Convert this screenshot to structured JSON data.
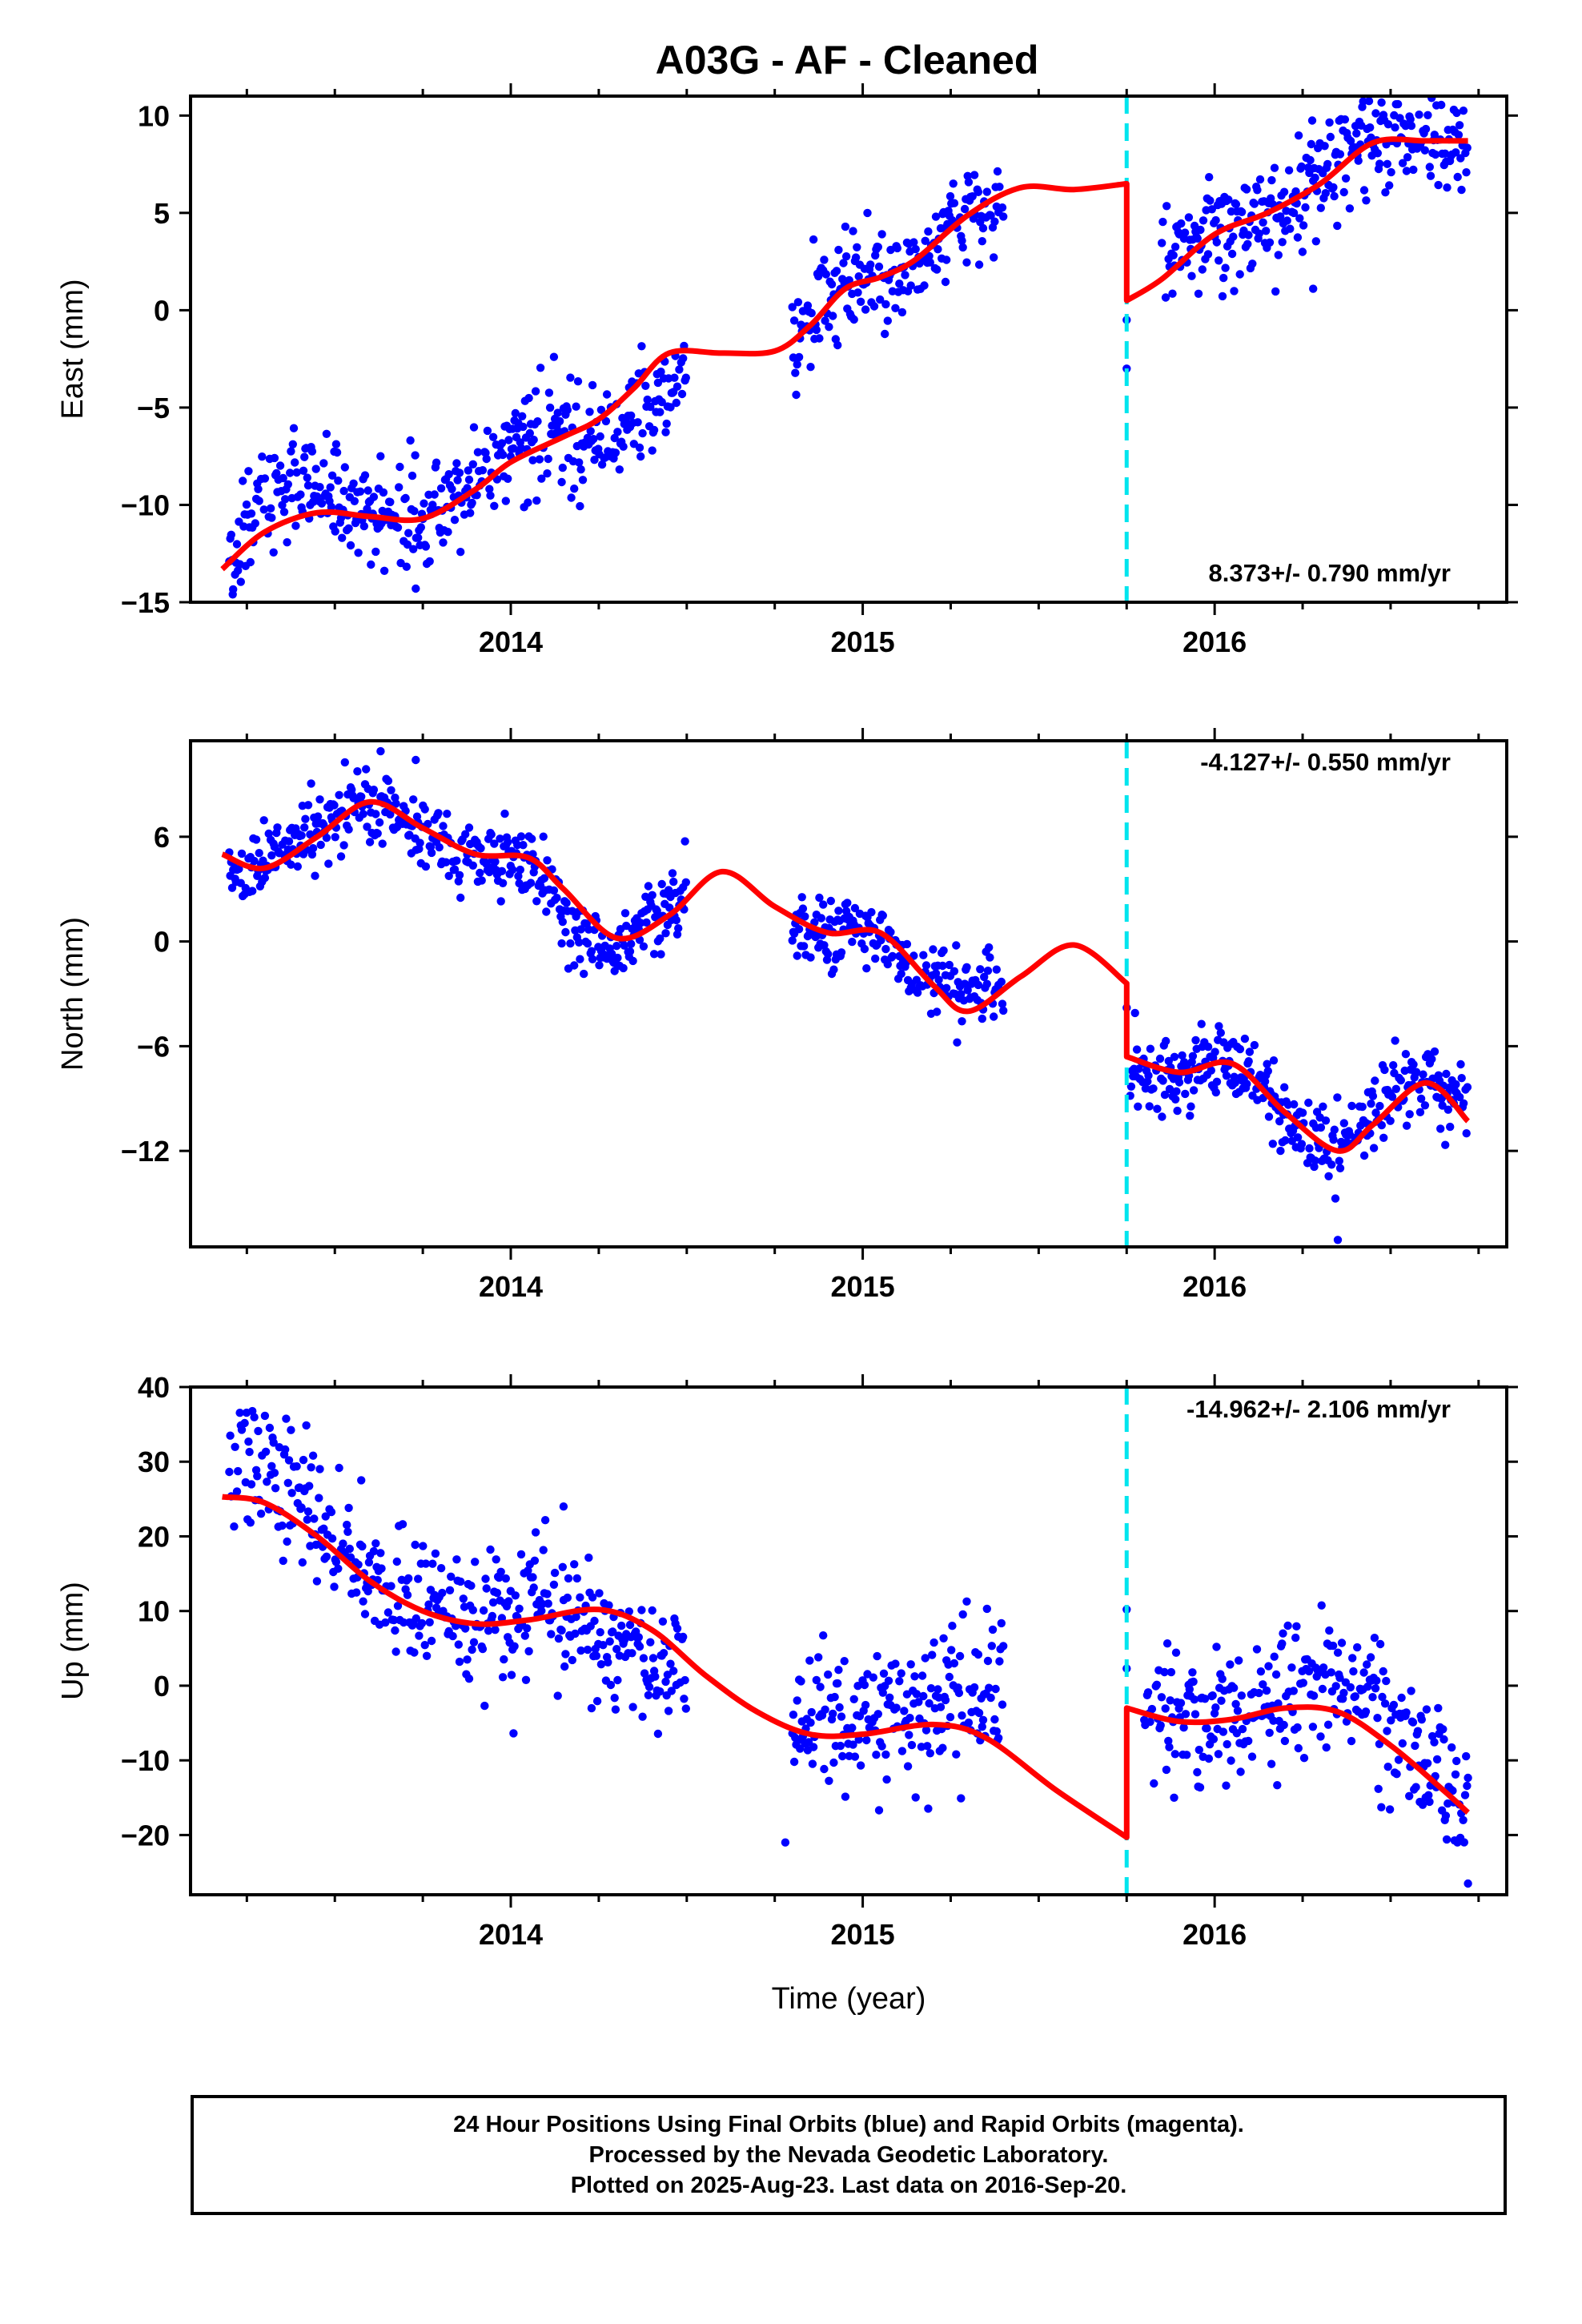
{
  "title": "A03G  - AF - Cleaned",
  "x_label": "Time (year)",
  "footer": {
    "line1": "24 Hour Positions Using Final Orbits (blue) and Rapid Orbits (magenta).",
    "line2": "Processed by the Nevada Geodetic Laboratory.",
    "line3": "Plotted on 2025-Aug-23. Last data on 2016-Sep-20."
  },
  "colors": {
    "points": "#0000ff",
    "model": "#ff0000",
    "offset_line": "#00e5ee"
  },
  "chart_data": [
    {
      "type": "scatter",
      "ylabel": "East (mm)",
      "rate": "8.373+/- 0.790 mm/yr",
      "xlim": [
        2013.09,
        2016.83
      ],
      "ylim": [
        -15,
        11
      ],
      "yticks": [
        -15,
        -10,
        -5,
        0,
        5,
        10
      ],
      "yticklabels": [
        "−15",
        "−10",
        "−5",
        "0",
        "5",
        "10"
      ],
      "xticks": [
        2014,
        2015,
        2016
      ],
      "xticklabels": [
        "2014",
        "2015",
        "2016"
      ],
      "offset_year": 2015.75,
      "trend_points": [
        [
          2013.2,
          -12.5
        ],
        [
          2013.3,
          -9.3
        ],
        [
          2013.4,
          -8.7
        ],
        [
          2013.5,
          -9.5
        ],
        [
          2013.6,
          -10.3
        ],
        [
          2013.7,
          -10.6
        ],
        [
          2013.8,
          -10.3
        ],
        [
          2013.9,
          -8.7
        ],
        [
          2014.0,
          -7.2
        ],
        [
          2014.1,
          -6.6
        ],
        [
          2014.2,
          -6.8
        ],
        [
          2014.3,
          -5.9
        ],
        [
          2014.4,
          -4.3
        ],
        [
          2014.5,
          -3.4
        ],
        [
          2014.8,
          -1.4
        ],
        [
          2014.9,
          0.9
        ],
        [
          2015.0,
          1.9
        ],
        [
          2015.1,
          1.8
        ],
        [
          2015.2,
          3.3
        ],
        [
          2015.3,
          4.7
        ],
        [
          2015.4,
          6.0
        ],
        [
          2015.85,
          2.4
        ],
        [
          2016.0,
          3.8
        ],
        [
          2016.1,
          4.4
        ],
        [
          2016.2,
          5.3
        ],
        [
          2016.3,
          7.1
        ],
        [
          2016.4,
          8.4
        ],
        [
          2016.5,
          8.6
        ],
        [
          2016.6,
          8.3
        ],
        [
          2016.7,
          8.5
        ],
        [
          2016.72,
          8.8
        ]
      ],
      "noise_sd": 1.4,
      "outliers": [
        [
          2015.75,
          -3.0
        ],
        [
          2015.75,
          -0.5
        ],
        [
          2016.28,
          1.1
        ],
        [
          2013.73,
          -14.3
        ],
        [
          2013.21,
          -14.6
        ]
      ],
      "model_nodes": [
        [
          2013.18,
          -13.3
        ],
        [
          2013.3,
          -11.4
        ],
        [
          2013.45,
          -10.4
        ],
        [
          2013.6,
          -10.6
        ],
        [
          2013.75,
          -10.7
        ],
        [
          2013.9,
          -9.2
        ],
        [
          2014.0,
          -7.8
        ],
        [
          2014.15,
          -6.5
        ],
        [
          2014.25,
          -5.6
        ],
        [
          2014.35,
          -4.0
        ],
        [
          2014.45,
          -2.2
        ],
        [
          2014.6,
          -2.2
        ],
        [
          2014.75,
          -2.1
        ],
        [
          2014.85,
          -0.8
        ],
        [
          2014.95,
          1.1
        ],
        [
          2015.05,
          1.7
        ],
        [
          2015.15,
          2.6
        ],
        [
          2015.3,
          4.9
        ],
        [
          2015.45,
          6.3
        ],
        [
          2015.6,
          6.2
        ],
        [
          2015.75,
          6.5
        ],
        [
          2015.75,
          0.5
        ],
        [
          2015.85,
          1.6
        ],
        [
          2016.0,
          3.9
        ],
        [
          2016.15,
          5.0
        ],
        [
          2016.3,
          6.5
        ],
        [
          2016.45,
          8.6
        ],
        [
          2016.6,
          8.7
        ],
        [
          2016.72,
          8.7
        ]
      ]
    },
    {
      "type": "scatter",
      "ylabel": "North (mm)",
      "rate": "-4.127+/- 0.550 mm/yr",
      "xlim": [
        2013.09,
        2016.83
      ],
      "ylim": [
        -17.5,
        11.5
      ],
      "yticks": [
        -12,
        -6,
        0,
        6
      ],
      "yticklabels": [
        "−12",
        "−6",
        "0",
        "6"
      ],
      "xticks": [
        2014,
        2015,
        2016
      ],
      "xticklabels": [
        "2014",
        "2015",
        "2016"
      ],
      "offset_year": 2015.75,
      "trend_points": [
        [
          2013.2,
          4.0
        ],
        [
          2013.35,
          5.0
        ],
        [
          2013.5,
          7.0
        ],
        [
          2013.6,
          8.0
        ],
        [
          2013.7,
          6.5
        ],
        [
          2013.85,
          5.0
        ],
        [
          2014.0,
          5.0
        ],
        [
          2014.1,
          3.0
        ],
        [
          2014.2,
          0.0
        ],
        [
          2014.3,
          -0.5
        ],
        [
          2014.4,
          1.5
        ],
        [
          2014.5,
          2.5
        ],
        [
          2014.8,
          1.0
        ],
        [
          2014.9,
          0.0
        ],
        [
          2015.0,
          1.0
        ],
        [
          2015.1,
          -1.0
        ],
        [
          2015.2,
          -2.5
        ],
        [
          2015.3,
          -2.8
        ],
        [
          2015.4,
          -2.5
        ],
        [
          2015.76,
          -7.0
        ],
        [
          2015.9,
          -8.0
        ],
        [
          2016.0,
          -6.5
        ],
        [
          2016.1,
          -7.5
        ],
        [
          2016.2,
          -10.0
        ],
        [
          2016.3,
          -11.5
        ],
        [
          2016.4,
          -11.0
        ],
        [
          2016.5,
          -8.5
        ],
        [
          2016.6,
          -8.0
        ],
        [
          2016.72,
          -9.5
        ]
      ],
      "noise_sd": 1.1,
      "outliers": [
        [
          2013.63,
          10.9
        ],
        [
          2013.73,
          10.4
        ],
        [
          2016.35,
          -17.1
        ],
        [
          2015.75,
          -3.8
        ]
      ],
      "model_nodes": [
        [
          2013.18,
          5.0
        ],
        [
          2013.3,
          4.2
        ],
        [
          2013.45,
          6.0
        ],
        [
          2013.6,
          8.0
        ],
        [
          2013.75,
          6.5
        ],
        [
          2013.9,
          5.0
        ],
        [
          2014.05,
          4.8
        ],
        [
          2014.15,
          3.0
        ],
        [
          2014.3,
          0.2
        ],
        [
          2014.45,
          1.5
        ],
        [
          2014.6,
          4.0
        ],
        [
          2014.75,
          2.0
        ],
        [
          2014.9,
          0.5
        ],
        [
          2015.05,
          0.5
        ],
        [
          2015.2,
          -2.5
        ],
        [
          2015.3,
          -4.0
        ],
        [
          2015.45,
          -2.0
        ],
        [
          2015.6,
          -0.2
        ],
        [
          2015.75,
          -2.4
        ],
        [
          2015.75,
          -6.6
        ],
        [
          2015.9,
          -7.5
        ],
        [
          2016.05,
          -7.0
        ],
        [
          2016.2,
          -9.8
        ],
        [
          2016.35,
          -12.0
        ],
        [
          2016.45,
          -10.5
        ],
        [
          2016.6,
          -8.1
        ],
        [
          2016.72,
          -10.3
        ]
      ]
    },
    {
      "type": "scatter",
      "ylabel": "Up (mm)",
      "rate": "-14.962+/- 2.106 mm/yr",
      "xlim": [
        2013.09,
        2016.83
      ],
      "ylim": [
        -28,
        40
      ],
      "yticks": [
        -20,
        -10,
        0,
        10,
        20,
        30,
        40
      ],
      "yticklabels": [
        "−20",
        "−10",
        "0",
        "10",
        "20",
        "30",
        "40"
      ],
      "xticks": [
        2014,
        2015,
        2016
      ],
      "xticklabels": [
        "2014",
        "2015",
        "2016"
      ],
      "offset_year": 2015.75,
      "trend_points": [
        [
          2013.2,
          28.0
        ],
        [
          2013.3,
          30.0
        ],
        [
          2013.4,
          25.0
        ],
        [
          2013.5,
          20.0
        ],
        [
          2013.6,
          15.0
        ],
        [
          2013.7,
          12.0
        ],
        [
          2013.8,
          10.0
        ],
        [
          2013.9,
          9.0
        ],
        [
          2014.0,
          9.0
        ],
        [
          2014.1,
          11.0
        ],
        [
          2014.2,
          9.0
        ],
        [
          2014.3,
          5.0
        ],
        [
          2014.4,
          3.0
        ],
        [
          2014.5,
          3.0
        ],
        [
          2014.8,
          -5.0
        ],
        [
          2014.9,
          -6.0
        ],
        [
          2015.0,
          -5.0
        ],
        [
          2015.1,
          -4.0
        ],
        [
          2015.2,
          -3.0
        ],
        [
          2015.3,
          -2.0
        ],
        [
          2015.4,
          -1.0
        ],
        [
          2015.8,
          -5.0
        ],
        [
          2015.9,
          -4.0
        ],
        [
          2016.0,
          -4.0
        ],
        [
          2016.1,
          -3.0
        ],
        [
          2016.2,
          0.0
        ],
        [
          2016.3,
          1.0
        ],
        [
          2016.4,
          -1.0
        ],
        [
          2016.5,
          -6.0
        ],
        [
          2016.6,
          -10.0
        ],
        [
          2016.72,
          -15.0
        ]
      ],
      "noise_sd": 4.5,
      "outliers": [
        [
          2015.75,
          10.2
        ],
        [
          2015.75,
          2.3
        ],
        [
          2014.78,
          -21.0
        ],
        [
          2016.72,
          -26.5
        ],
        [
          2014.15,
          24.0
        ]
      ],
      "model_nodes": [
        [
          2013.18,
          25.3
        ],
        [
          2013.3,
          24.5
        ],
        [
          2013.45,
          20.0
        ],
        [
          2013.6,
          14.0
        ],
        [
          2013.75,
          10.0
        ],
        [
          2013.9,
          8.3
        ],
        [
          2014.05,
          8.8
        ],
        [
          2014.25,
          10.2
        ],
        [
          2014.4,
          7.5
        ],
        [
          2014.55,
          1.5
        ],
        [
          2014.7,
          -3.5
        ],
        [
          2014.85,
          -6.5
        ],
        [
          2015.0,
          -6.5
        ],
        [
          2015.2,
          -5.2
        ],
        [
          2015.35,
          -7.0
        ],
        [
          2015.55,
          -14.0
        ],
        [
          2015.75,
          -20.3
        ],
        [
          2015.75,
          -3.0
        ],
        [
          2015.9,
          -4.8
        ],
        [
          2016.05,
          -4.5
        ],
        [
          2016.2,
          -3.0
        ],
        [
          2016.35,
          -3.5
        ],
        [
          2016.5,
          -8.0
        ],
        [
          2016.65,
          -14.0
        ],
        [
          2016.72,
          -17.0
        ]
      ]
    }
  ]
}
